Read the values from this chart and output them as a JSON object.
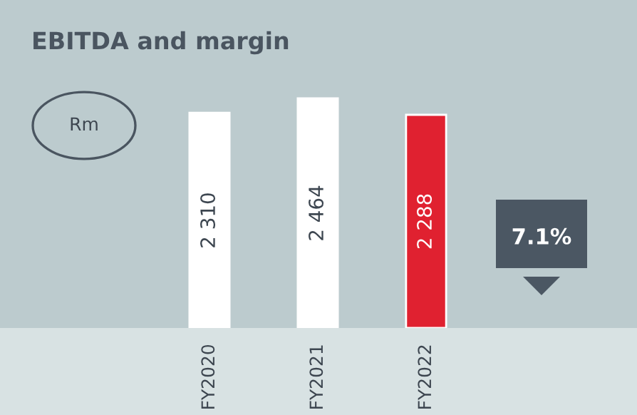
{
  "chart_data": {
    "type": "bar",
    "title": "EBITDA and margin",
    "categories": [
      "FY2020",
      "FY2021",
      "FY2022"
    ],
    "values": [
      2310,
      2464,
      2288
    ],
    "colors": [
      "#ffffff",
      "#ffffff",
      "#e02130"
    ],
    "value_labels": [
      "2 310",
      "2 464",
      "2 288"
    ],
    "annotations": [
      "Rm",
      "7.1%"
    ],
    "grid": false,
    "legend": false
  }
}
